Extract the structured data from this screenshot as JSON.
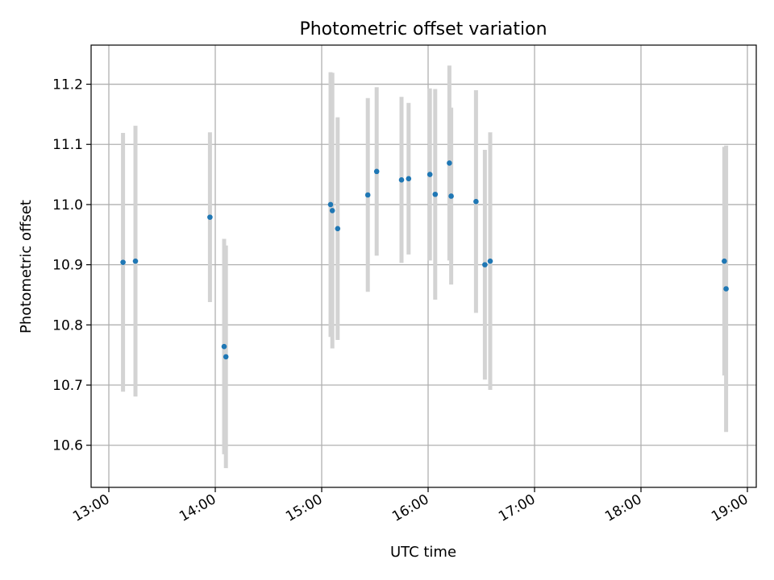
{
  "chart_data": {
    "type": "scatter",
    "title": "Photometric offset variation",
    "xlabel": "UTC time",
    "ylabel": "Photometric offset",
    "x_tick_labels": [
      "13:00",
      "14:00",
      "15:00",
      "16:00",
      "17:00",
      "18:00",
      "19:00"
    ],
    "y_tick_labels": [
      "10.6",
      "10.7",
      "10.8",
      "10.9",
      "11.0",
      "11.1",
      "11.2"
    ],
    "xlim": [
      "12:50",
      "19:05"
    ],
    "ylim": [
      10.53,
      11.265
    ],
    "grid": true,
    "colors": {
      "marker": "#1f77b4",
      "errorbar": "#d3d3d3",
      "grid": "#b0b0b0"
    },
    "points": [
      {
        "x": "13:08",
        "y": 10.904,
        "err": 0.215
      },
      {
        "x": "13:15",
        "y": 10.906,
        "err": 0.225
      },
      {
        "x": "13:57",
        "y": 10.979,
        "err": 0.141
      },
      {
        "x": "14:05",
        "y": 10.764,
        "err": 0.179
      },
      {
        "x": "14:06",
        "y": 10.747,
        "err": 0.185
      },
      {
        "x": "15:05",
        "y": 11.0,
        "err": 0.22
      },
      {
        "x": "15:06",
        "y": 10.99,
        "err": 0.229
      },
      {
        "x": "15:09",
        "y": 10.96,
        "err": 0.185
      },
      {
        "x": "15:26",
        "y": 11.016,
        "err": 0.161
      },
      {
        "x": "15:31",
        "y": 11.055,
        "err": 0.14
      },
      {
        "x": "15:45",
        "y": 11.041,
        "err": 0.138
      },
      {
        "x": "15:49",
        "y": 11.043,
        "err": 0.126
      },
      {
        "x": "16:01",
        "y": 11.05,
        "err": 0.143
      },
      {
        "x": "16:04",
        "y": 11.017,
        "err": 0.175
      },
      {
        "x": "16:12",
        "y": 11.069,
        "err": 0.162
      },
      {
        "x": "16:13",
        "y": 11.014,
        "err": 0.147
      },
      {
        "x": "16:27",
        "y": 11.005,
        "err": 0.185
      },
      {
        "x": "16:32",
        "y": 10.9,
        "err": 0.191
      },
      {
        "x": "16:35",
        "y": 10.906,
        "err": 0.214
      },
      {
        "x": "18:47",
        "y": 10.906,
        "err": 0.19
      },
      {
        "x": "18:48",
        "y": 10.86,
        "err": 0.238
      }
    ]
  }
}
